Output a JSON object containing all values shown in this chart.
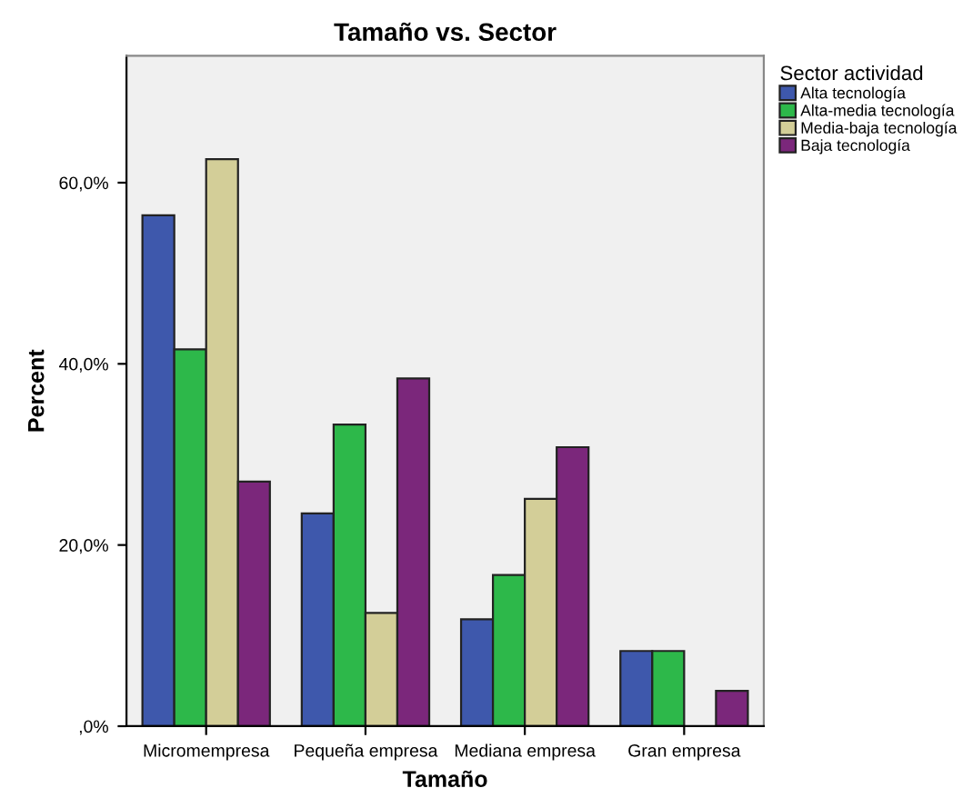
{
  "chart_data": {
    "type": "bar",
    "title": "Tamaño vs. Sector",
    "xlabel": "Tamaño",
    "ylabel": "Percent",
    "legend_title": "Sector actividad",
    "legend": "top right",
    "categories": [
      "Micromempresa",
      "Pequeña empresa",
      "Mediana empresa",
      "Gran empresa"
    ],
    "series": [
      {
        "name": "Alta tecnología",
        "color": "#3e58ac",
        "values": [
          56.4,
          23.5,
          11.8,
          8.3
        ]
      },
      {
        "name": "Alta-media tecnología",
        "color": "#2db84a",
        "values": [
          41.6,
          33.3,
          16.7,
          8.3
        ]
      },
      {
        "name": "Media-baja tecnología",
        "color": "#d3ce98",
        "values": [
          62.6,
          12.5,
          25.1,
          null
        ]
      },
      {
        "name": "Baja tecnología",
        "color": "#7b277b",
        "values": [
          27.0,
          38.4,
          30.8,
          3.9
        ]
      }
    ],
    "ylim": [
      0,
      74
    ],
    "yticks": [
      {
        "value": 0,
        "label": ",0%"
      },
      {
        "value": 20,
        "label": "20,0%"
      },
      {
        "value": 40,
        "label": "40,0%"
      },
      {
        "value": 60,
        "label": "60,0%"
      }
    ],
    "grid": false
  }
}
